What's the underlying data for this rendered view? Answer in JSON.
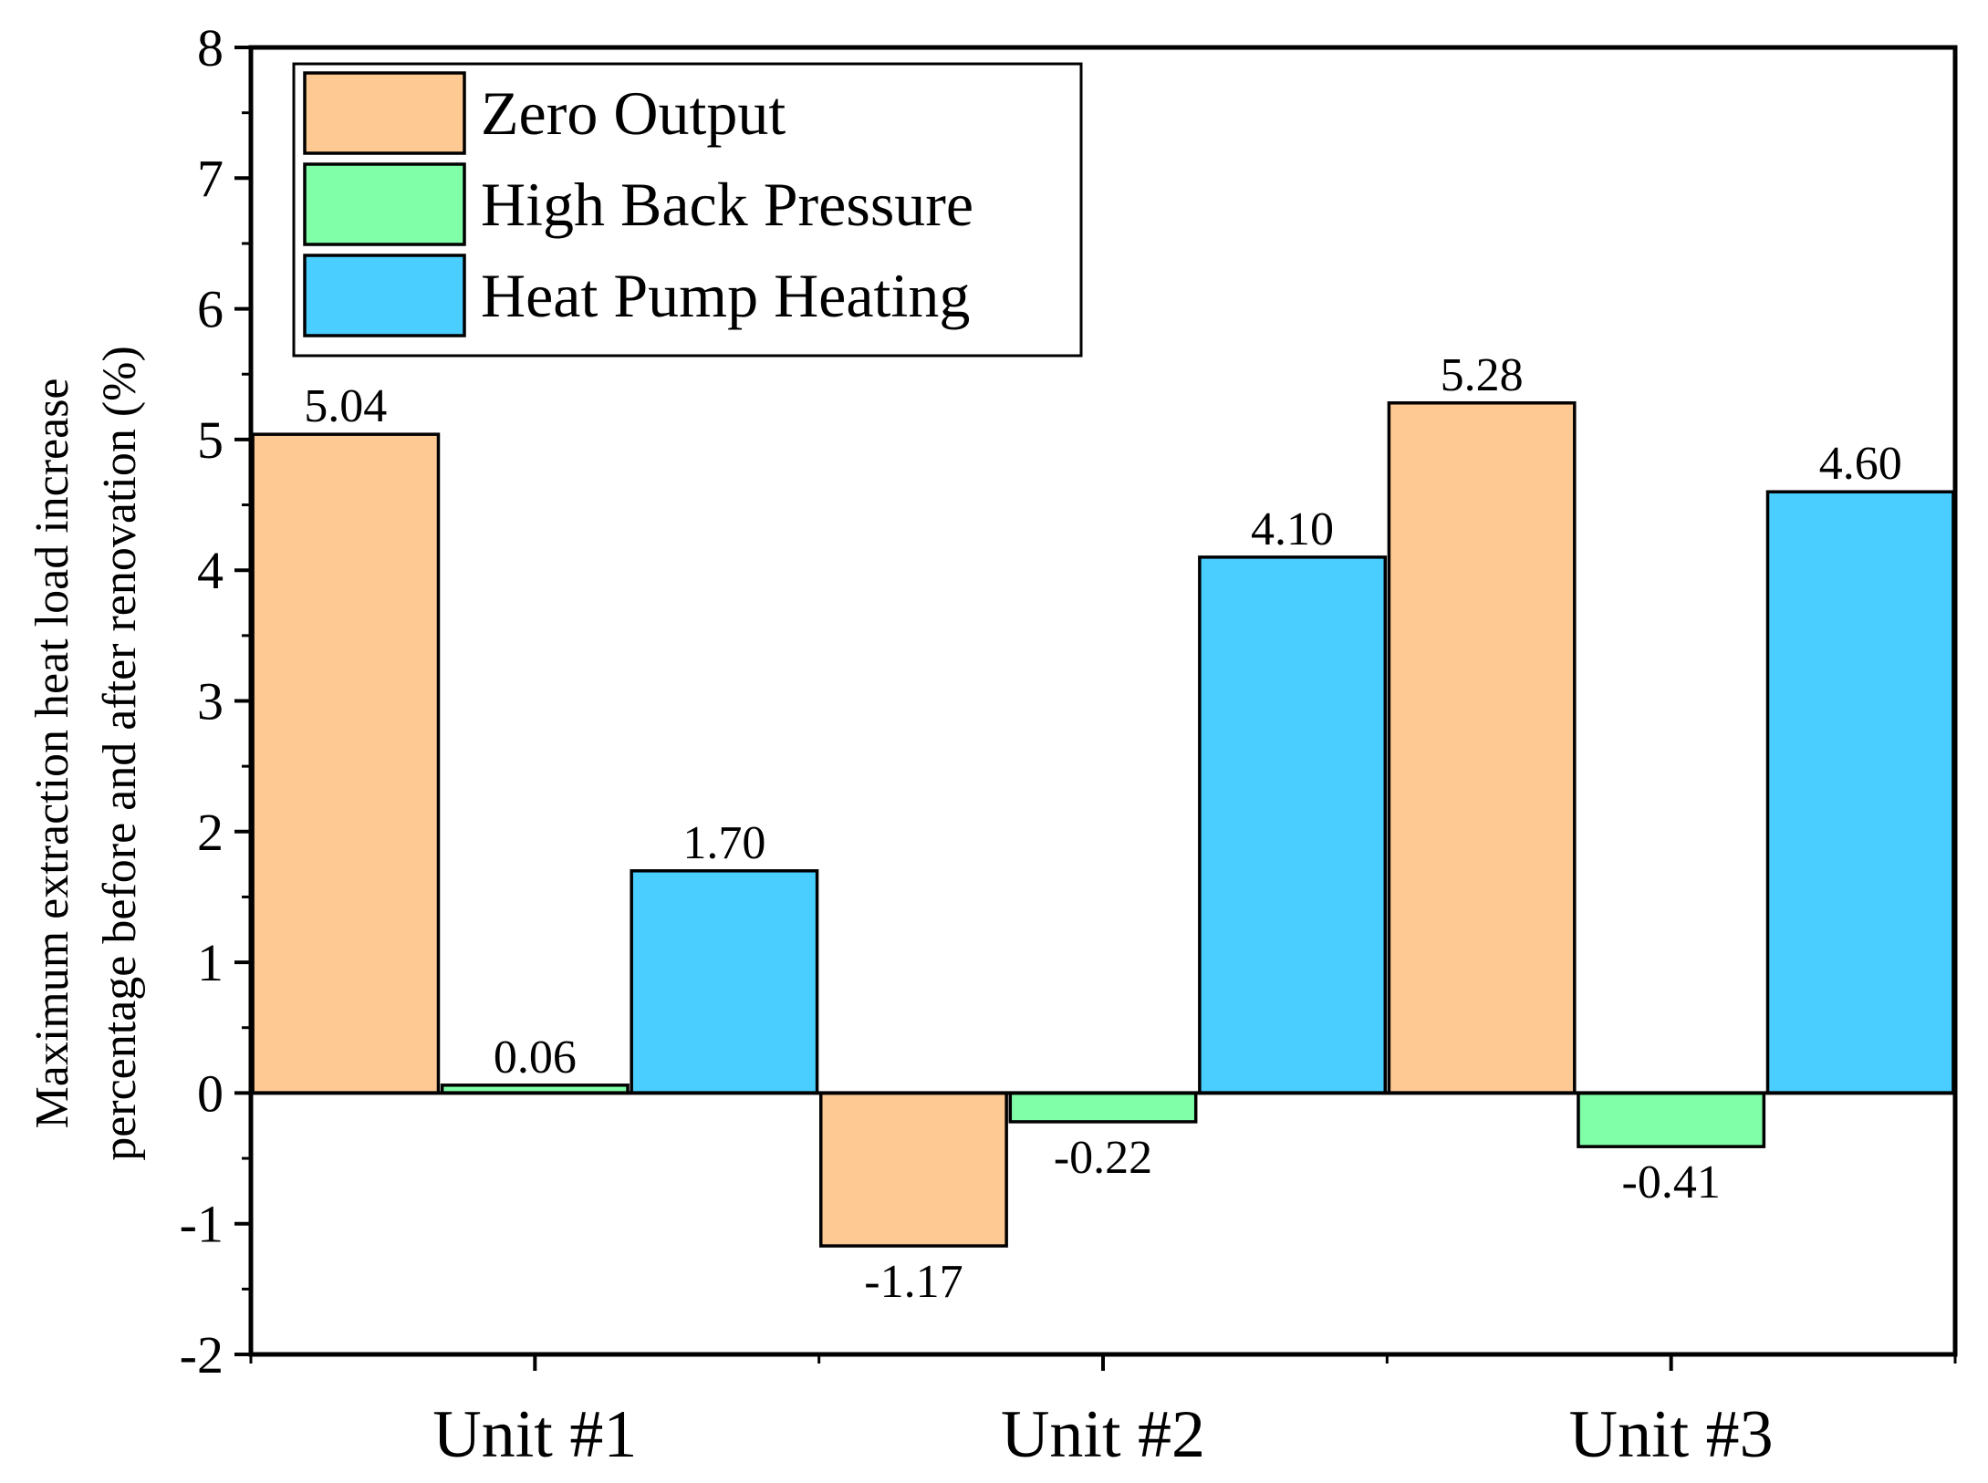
{
  "chart_data": {
    "type": "bar",
    "title": "",
    "xlabel": "",
    "ylabel_lines": [
      "Maximum extraction heat load increase",
      "percentage before and after renovation (%)"
    ],
    "categories": [
      "Unit #1",
      "Unit #2",
      "Unit #3"
    ],
    "ylim": [
      -2,
      8
    ],
    "yticks": [
      -2,
      -1,
      0,
      1,
      2,
      3,
      4,
      5,
      6,
      7,
      8
    ],
    "series": [
      {
        "name": "Zero Output",
        "color": "#FFC993",
        "values": [
          5.04,
          -1.17,
          5.28
        ],
        "labels": [
          "5.04",
          "-1.17",
          "5.28"
        ]
      },
      {
        "name": "High Back Pressure",
        "color": "#80FFA8",
        "values": [
          0.06,
          -0.22,
          -0.41
        ],
        "labels": [
          "0.06",
          "-0.22",
          "-0.41"
        ]
      },
      {
        "name": "Heat Pump Heating",
        "color": "#4ACEFF",
        "values": [
          1.7,
          4.1,
          4.6
        ],
        "labels": [
          "1.70",
          "4.10",
          "4.60"
        ]
      }
    ],
    "legend_position": "top-left",
    "grid": false,
    "zero_line": true
  }
}
